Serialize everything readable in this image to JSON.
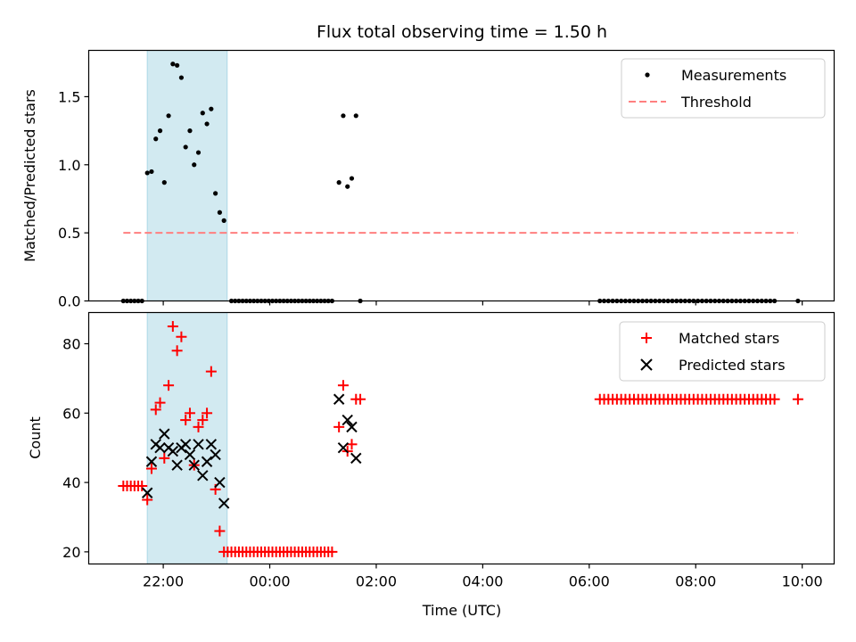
{
  "chart_data": {
    "type": "scatter",
    "title": "Flux total observing time = 1.50 h",
    "shared_x": {
      "label": "Time (UTC)",
      "unit": "hours after 00:00 UTC",
      "range": [
        -3.4,
        10.6
      ],
      "ticks": [
        -2,
        0,
        2,
        4,
        6,
        8,
        10
      ],
      "tick_labels": [
        "22:00",
        "00:00",
        "02:00",
        "04:00",
        "06:00",
        "08:00",
        "10:00"
      ]
    },
    "highlight_span": {
      "x0": -2.3,
      "x1": -0.8,
      "color": "#add8e6"
    },
    "panels": [
      {
        "id": "ratio",
        "ylabel": "Matched/Predicted stars",
        "ylim": [
          0,
          1.84
        ],
        "yticks": [
          0.0,
          0.5,
          1.0,
          1.5
        ],
        "ytick_labels": [
          "0.0",
          "0.5",
          "1.0",
          "1.5"
        ],
        "legend": {
          "placement": "upper right",
          "entries": [
            "Measurements",
            "Threshold"
          ]
        },
        "series": [
          {
            "name": "Measurements",
            "marker": "dot",
            "color": "#000000",
            "points": [
              [
                -2.75,
                0
              ],
              [
                -2.68,
                0
              ],
              [
                -2.61,
                0
              ],
              [
                -2.54,
                0
              ],
              [
                -2.47,
                0
              ],
              [
                -2.4,
                0
              ],
              [
                -2.3,
                0.94
              ],
              [
                -2.22,
                0.95
              ],
              [
                -2.14,
                1.19
              ],
              [
                -2.06,
                1.25
              ],
              [
                -1.98,
                0.87
              ],
              [
                -1.9,
                1.36
              ],
              [
                -1.82,
                1.74
              ],
              [
                -1.74,
                1.73
              ],
              [
                -1.66,
                1.64
              ],
              [
                -1.58,
                1.13
              ],
              [
                -1.5,
                1.25
              ],
              [
                -1.42,
                1.0
              ],
              [
                -1.34,
                1.09
              ],
              [
                -1.26,
                1.38
              ],
              [
                -1.18,
                1.3
              ],
              [
                -1.1,
                1.41
              ],
              [
                -1.02,
                0.79
              ],
              [
                -0.94,
                0.65
              ],
              [
                -0.86,
                0.59
              ],
              [
                -0.72,
                0
              ],
              [
                -0.65,
                0
              ],
              [
                -0.58,
                0
              ],
              [
                -0.51,
                0
              ],
              [
                -0.44,
                0
              ],
              [
                -0.37,
                0
              ],
              [
                -0.3,
                0
              ],
              [
                -0.23,
                0
              ],
              [
                -0.16,
                0
              ],
              [
                -0.09,
                0
              ],
              [
                -0.02,
                0
              ],
              [
                0.05,
                0
              ],
              [
                0.12,
                0
              ],
              [
                0.19,
                0
              ],
              [
                0.26,
                0
              ],
              [
                0.33,
                0
              ],
              [
                0.4,
                0
              ],
              [
                0.47,
                0
              ],
              [
                0.54,
                0
              ],
              [
                0.61,
                0
              ],
              [
                0.68,
                0
              ],
              [
                0.75,
                0
              ],
              [
                0.82,
                0
              ],
              [
                0.89,
                0
              ],
              [
                0.96,
                0
              ],
              [
                1.03,
                0
              ],
              [
                1.1,
                0
              ],
              [
                1.17,
                0
              ],
              [
                1.3,
                0.87
              ],
              [
                1.38,
                1.36
              ],
              [
                1.46,
                0.84
              ],
              [
                1.54,
                0.9
              ],
              [
                1.62,
                1.36
              ],
              [
                1.7,
                0
              ],
              [
                6.2,
                0
              ],
              [
                6.28,
                0
              ],
              [
                6.36,
                0
              ],
              [
                6.44,
                0
              ],
              [
                6.52,
                0
              ],
              [
                6.6,
                0
              ],
              [
                6.68,
                0
              ],
              [
                6.76,
                0
              ],
              [
                6.84,
                0
              ],
              [
                6.92,
                0
              ],
              [
                7.0,
                0
              ],
              [
                7.08,
                0
              ],
              [
                7.16,
                0
              ],
              [
                7.24,
                0
              ],
              [
                7.32,
                0
              ],
              [
                7.4,
                0
              ],
              [
                7.48,
                0
              ],
              [
                7.56,
                0
              ],
              [
                7.64,
                0
              ],
              [
                7.72,
                0
              ],
              [
                7.8,
                0
              ],
              [
                7.88,
                0
              ],
              [
                7.96,
                0
              ],
              [
                8.04,
                0
              ],
              [
                8.12,
                0
              ],
              [
                8.2,
                0
              ],
              [
                8.28,
                0
              ],
              [
                8.36,
                0
              ],
              [
                8.44,
                0
              ],
              [
                8.52,
                0
              ],
              [
                8.6,
                0
              ],
              [
                8.68,
                0
              ],
              [
                8.76,
                0
              ],
              [
                8.84,
                0
              ],
              [
                8.92,
                0
              ],
              [
                9.0,
                0
              ],
              [
                9.08,
                0
              ],
              [
                9.16,
                0
              ],
              [
                9.24,
                0
              ],
              [
                9.32,
                0
              ],
              [
                9.4,
                0
              ],
              [
                9.48,
                0
              ],
              [
                9.92,
                0
              ]
            ]
          },
          {
            "name": "Threshold",
            "marker": "dashed-line",
            "color": "#ff7f7f",
            "points": [
              [
                -2.75,
                0.5
              ],
              [
                9.92,
                0.5
              ]
            ]
          }
        ]
      },
      {
        "id": "counts",
        "ylabel": "Count",
        "ylim": [
          16.5,
          89
        ],
        "yticks": [
          20,
          40,
          60,
          80
        ],
        "ytick_labels": [
          "20",
          "40",
          "60",
          "80"
        ],
        "legend": {
          "placement": "upper right",
          "entries": [
            "Matched stars",
            "Predicted stars"
          ]
        },
        "series": [
          {
            "name": "Matched stars",
            "marker": "plus",
            "color": "#ff0000",
            "points": [
              [
                -2.75,
                39
              ],
              [
                -2.68,
                39
              ],
              [
                -2.61,
                39
              ],
              [
                -2.54,
                39
              ],
              [
                -2.47,
                39
              ],
              [
                -2.4,
                39
              ],
              [
                -2.3,
                35
              ],
              [
                -2.22,
                44
              ],
              [
                -2.14,
                61
              ],
              [
                -2.06,
                63
              ],
              [
                -1.98,
                47
              ],
              [
                -1.9,
                68
              ],
              [
                -1.82,
                85
              ],
              [
                -1.74,
                78
              ],
              [
                -1.66,
                82
              ],
              [
                -1.58,
                58
              ],
              [
                -1.5,
                60
              ],
              [
                -1.42,
                45
              ],
              [
                -1.34,
                56
              ],
              [
                -1.26,
                58
              ],
              [
                -1.18,
                60
              ],
              [
                -1.1,
                72
              ],
              [
                -1.02,
                38
              ],
              [
                -0.94,
                26
              ],
              [
                -0.86,
                20
              ],
              [
                -0.79,
                20
              ],
              [
                -0.72,
                20
              ],
              [
                -0.65,
                20
              ],
              [
                -0.58,
                20
              ],
              [
                -0.51,
                20
              ],
              [
                -0.44,
                20
              ],
              [
                -0.37,
                20
              ],
              [
                -0.3,
                20
              ],
              [
                -0.23,
                20
              ],
              [
                -0.16,
                20
              ],
              [
                -0.09,
                20
              ],
              [
                -0.02,
                20
              ],
              [
                0.05,
                20
              ],
              [
                0.12,
                20
              ],
              [
                0.19,
                20
              ],
              [
                0.26,
                20
              ],
              [
                0.33,
                20
              ],
              [
                0.4,
                20
              ],
              [
                0.47,
                20
              ],
              [
                0.54,
                20
              ],
              [
                0.61,
                20
              ],
              [
                0.68,
                20
              ],
              [
                0.75,
                20
              ],
              [
                0.82,
                20
              ],
              [
                0.89,
                20
              ],
              [
                0.96,
                20
              ],
              [
                1.03,
                20
              ],
              [
                1.1,
                20
              ],
              [
                1.17,
                20
              ],
              [
                1.3,
                56
              ],
              [
                1.38,
                68
              ],
              [
                1.46,
                49
              ],
              [
                1.54,
                51
              ],
              [
                1.62,
                64
              ],
              [
                1.7,
                64
              ],
              [
                6.2,
                64
              ],
              [
                6.28,
                64
              ],
              [
                6.36,
                64
              ],
              [
                6.44,
                64
              ],
              [
                6.52,
                64
              ],
              [
                6.6,
                64
              ],
              [
                6.68,
                64
              ],
              [
                6.76,
                64
              ],
              [
                6.84,
                64
              ],
              [
                6.92,
                64
              ],
              [
                7.0,
                64
              ],
              [
                7.08,
                64
              ],
              [
                7.16,
                64
              ],
              [
                7.24,
                64
              ],
              [
                7.32,
                64
              ],
              [
                7.4,
                64
              ],
              [
                7.48,
                64
              ],
              [
                7.56,
                64
              ],
              [
                7.64,
                64
              ],
              [
                7.72,
                64
              ],
              [
                7.8,
                64
              ],
              [
                7.88,
                64
              ],
              [
                7.96,
                64
              ],
              [
                8.04,
                64
              ],
              [
                8.12,
                64
              ],
              [
                8.2,
                64
              ],
              [
                8.28,
                64
              ],
              [
                8.36,
                64
              ],
              [
                8.44,
                64
              ],
              [
                8.52,
                64
              ],
              [
                8.6,
                64
              ],
              [
                8.68,
                64
              ],
              [
                8.76,
                64
              ],
              [
                8.84,
                64
              ],
              [
                8.92,
                64
              ],
              [
                9.0,
                64
              ],
              [
                9.08,
                64
              ],
              [
                9.16,
                64
              ],
              [
                9.24,
                64
              ],
              [
                9.32,
                64
              ],
              [
                9.4,
                64
              ],
              [
                9.48,
                64
              ],
              [
                9.92,
                64
              ]
            ]
          },
          {
            "name": "Predicted stars",
            "marker": "x",
            "color": "#000000",
            "points": [
              [
                -2.3,
                37
              ],
              [
                -2.22,
                46
              ],
              [
                -2.14,
                51
              ],
              [
                -2.06,
                50
              ],
              [
                -1.98,
                54
              ],
              [
                -1.9,
                50
              ],
              [
                -1.82,
                49
              ],
              [
                -1.74,
                45
              ],
              [
                -1.66,
                50
              ],
              [
                -1.58,
                51
              ],
              [
                -1.5,
                48
              ],
              [
                -1.42,
                45
              ],
              [
                -1.34,
                51
              ],
              [
                -1.26,
                42
              ],
              [
                -1.18,
                46
              ],
              [
                -1.1,
                51
              ],
              [
                -1.02,
                48
              ],
              [
                -0.94,
                40
              ],
              [
                -0.86,
                34
              ],
              [
                1.3,
                64
              ],
              [
                1.38,
                50
              ],
              [
                1.46,
                58
              ],
              [
                1.54,
                56
              ],
              [
                1.62,
                47
              ]
            ]
          }
        ]
      }
    ]
  }
}
